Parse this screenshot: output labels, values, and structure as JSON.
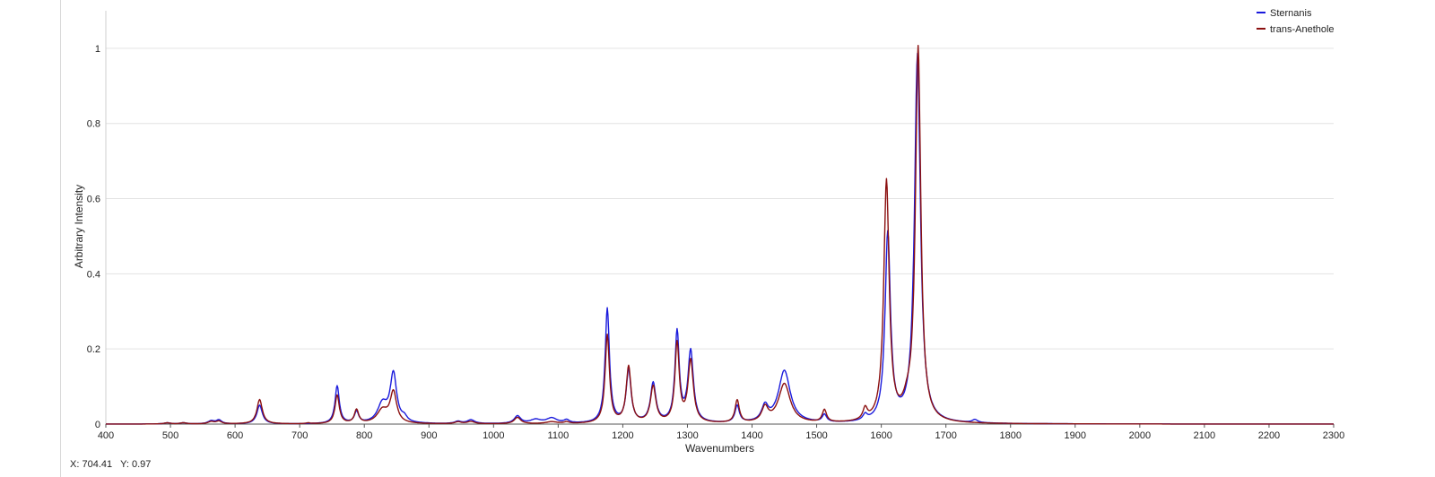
{
  "cursor_readout": {
    "x_label": "X:",
    "x_value": "704.41",
    "y_label": "Y:",
    "y_value": "0.97"
  },
  "chart_data": {
    "type": "line",
    "title": "",
    "xlabel": "Wavenumbers",
    "ylabel": "Arbitrary Intensity",
    "xlim": [
      400,
      2300
    ],
    "ylim": [
      0,
      1.1
    ],
    "x_ticks": [
      400,
      500,
      600,
      700,
      800,
      900,
      1000,
      1100,
      1200,
      1300,
      1400,
      1500,
      1600,
      1700,
      1800,
      1900,
      2000,
      2100,
      2200,
      2300
    ],
    "y_ticks": [
      0,
      0.2,
      0.4,
      0.6,
      0.8,
      1
    ],
    "y_tick_labels": [
      "0",
      "0.2",
      "0.4",
      "0.6",
      "0.8",
      "1"
    ],
    "grid": "horizontal",
    "legend_position": "top-right",
    "series": [
      {
        "name": "Sternanis",
        "color": "#1a1adc",
        "peaks": [
          {
            "x": 495,
            "y": 0.003,
            "w": 6
          },
          {
            "x": 520,
            "y": 0.003,
            "w": 6
          },
          {
            "x": 563,
            "y": 0.008,
            "w": 6
          },
          {
            "x": 575,
            "y": 0.01,
            "w": 5
          },
          {
            "x": 638,
            "y": 0.05,
            "w": 5
          },
          {
            "x": 758,
            "y": 0.1,
            "w": 4
          },
          {
            "x": 788,
            "y": 0.03,
            "w": 4
          },
          {
            "x": 828,
            "y": 0.05,
            "w": 9
          },
          {
            "x": 845,
            "y": 0.13,
            "w": 6
          },
          {
            "x": 862,
            "y": 0.012,
            "w": 5
          },
          {
            "x": 945,
            "y": 0.006,
            "w": 6
          },
          {
            "x": 965,
            "y": 0.01,
            "w": 7
          },
          {
            "x": 1037,
            "y": 0.02,
            "w": 6
          },
          {
            "x": 1065,
            "y": 0.01,
            "w": 10
          },
          {
            "x": 1090,
            "y": 0.014,
            "w": 10
          },
          {
            "x": 1113,
            "y": 0.008,
            "w": 5
          },
          {
            "x": 1176,
            "y": 0.305,
            "w": 4
          },
          {
            "x": 1209,
            "y": 0.14,
            "w": 4.5
          },
          {
            "x": 1247,
            "y": 0.105,
            "w": 5
          },
          {
            "x": 1284,
            "y": 0.24,
            "w": 4
          },
          {
            "x": 1305,
            "y": 0.19,
            "w": 5
          },
          {
            "x": 1377,
            "y": 0.045,
            "w": 4
          },
          {
            "x": 1420,
            "y": 0.04,
            "w": 6
          },
          {
            "x": 1450,
            "y": 0.14,
            "w": 11
          },
          {
            "x": 1512,
            "y": 0.02,
            "w": 4
          },
          {
            "x": 1575,
            "y": 0.015,
            "w": 4
          },
          {
            "x": 1610,
            "y": 0.5,
            "w": 5
          },
          {
            "x": 1656,
            "y": 0.98,
            "w": 5.5
          },
          {
            "x": 1745,
            "y": 0.008,
            "w": 5
          }
        ]
      },
      {
        "name": "trans-Anethole",
        "color": "#8b1010",
        "peaks": [
          {
            "x": 495,
            "y": 0.003,
            "w": 6
          },
          {
            "x": 520,
            "y": 0.003,
            "w": 6
          },
          {
            "x": 563,
            "y": 0.006,
            "w": 6
          },
          {
            "x": 575,
            "y": 0.007,
            "w": 5
          },
          {
            "x": 638,
            "y": 0.065,
            "w": 5
          },
          {
            "x": 713,
            "y": 0.002,
            "w": 4
          },
          {
            "x": 758,
            "y": 0.076,
            "w": 4
          },
          {
            "x": 788,
            "y": 0.036,
            "w": 4
          },
          {
            "x": 828,
            "y": 0.035,
            "w": 10
          },
          {
            "x": 845,
            "y": 0.082,
            "w": 6
          },
          {
            "x": 945,
            "y": 0.005,
            "w": 6
          },
          {
            "x": 965,
            "y": 0.006,
            "w": 7
          },
          {
            "x": 1037,
            "y": 0.017,
            "w": 6
          },
          {
            "x": 1090,
            "y": 0.005,
            "w": 10
          },
          {
            "x": 1113,
            "y": 0.004,
            "w": 5
          },
          {
            "x": 1176,
            "y": 0.235,
            "w": 4
          },
          {
            "x": 1209,
            "y": 0.15,
            "w": 4.5
          },
          {
            "x": 1247,
            "y": 0.097,
            "w": 5
          },
          {
            "x": 1284,
            "y": 0.21,
            "w": 4
          },
          {
            "x": 1305,
            "y": 0.165,
            "w": 5
          },
          {
            "x": 1377,
            "y": 0.06,
            "w": 4
          },
          {
            "x": 1420,
            "y": 0.038,
            "w": 6
          },
          {
            "x": 1450,
            "y": 0.105,
            "w": 11
          },
          {
            "x": 1512,
            "y": 0.033,
            "w": 4
          },
          {
            "x": 1575,
            "y": 0.03,
            "w": 4
          },
          {
            "x": 1608,
            "y": 0.64,
            "w": 5
          },
          {
            "x": 1657,
            "y": 0.995,
            "w": 5
          },
          {
            "x": 1640,
            "y": 0.03,
            "w": 8
          }
        ]
      }
    ]
  }
}
